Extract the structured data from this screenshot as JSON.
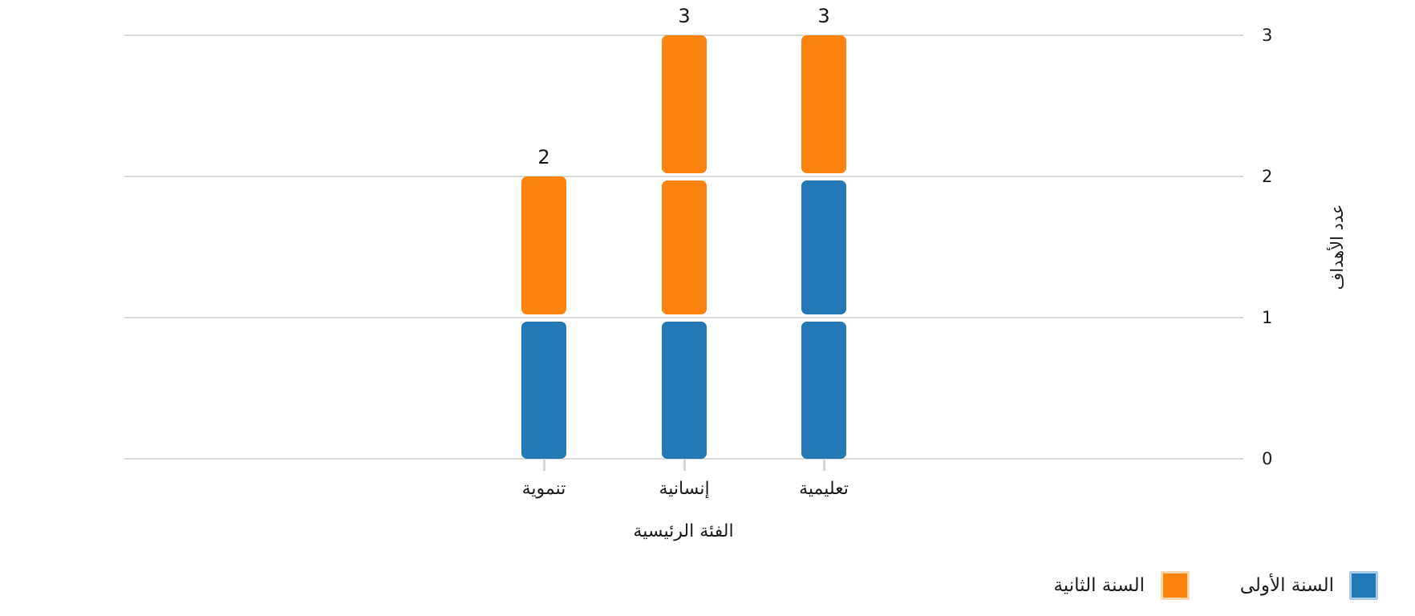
{
  "colors": {
    "first_year": "#2279B5",
    "first_year_halo": "#A9CBE4",
    "second_year": "#FC830E",
    "second_year_halo": "#FED7AC",
    "gridline": "#DBDBDB",
    "tick": "#D6D6D6",
    "text": "#1B1B1B",
    "background": "#FFFFFF"
  },
  "chart_data": {
    "type": "bar",
    "stacked": true,
    "rtl": true,
    "title": "",
    "xlabel": "الفئة الرئيسية",
    "ylabel": "عدد الأهداف",
    "categories": [
      "تعليمية",
      "إنسانية",
      "تنموية"
    ],
    "series": [
      {
        "key": "first-year",
        "name": "السنة الأولى",
        "color": "#2279B5",
        "swatch_halo": "#A9CBE4",
        "values": [
          2,
          1,
          1
        ]
      },
      {
        "key": "second-year",
        "name": "السنة الثانية",
        "color": "#FC830E",
        "swatch_halo": "#FED7AC",
        "values": [
          1,
          2,
          1
        ]
      }
    ],
    "totals": [
      "3",
      "3",
      "2"
    ],
    "y_ticks": [
      "0",
      "1",
      "2",
      "3"
    ],
    "ylim": [
      0,
      3
    ],
    "grid": true,
    "legend_position": "bottom-right",
    "unit_style": "segmented-rounded-blocks"
  }
}
